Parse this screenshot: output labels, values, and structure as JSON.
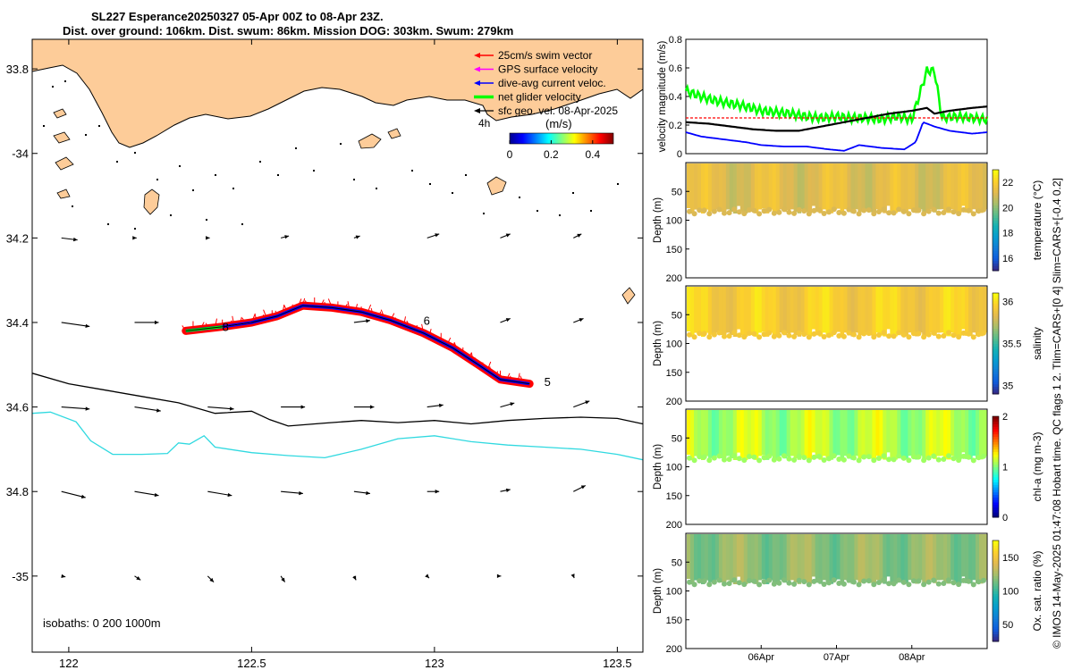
{
  "title_line1": "SL227 Esperance20250327 05-Apr 00Z to 08-Apr 23Z.",
  "title_line2": "Dist. over ground: 106km. Dist. swum: 86km. Mission DOG: 303km. Swum: 279km",
  "side_caption": "© IMOS 14-May-2025 01:47:08 Hobart time. QC flags 1  2. Tlim=CARS+[0 4] Slim=CARS+[-0.4 0.2]",
  "colors": {
    "land": "#fdcc99",
    "swim_vector": "#ff0000",
    "gps_velocity": "#ff00ff",
    "dive_avg": "#0000ff",
    "net_velocity": "#00ff00",
    "sfc_geo": "#000000",
    "isobath_200": "#000000",
    "isobath_1000": "#30d9e0"
  },
  "chart_data": [
    {
      "type": "map",
      "name": "glider track map",
      "xlim": [
        121.9,
        123.57
      ],
      "ylim": [
        -35.18,
        -33.73
      ],
      "xticks": [
        122,
        122.5,
        123,
        123.5
      ],
      "xtick_labels": [
        "122",
        "122.5",
        "123",
        "123.5"
      ],
      "yticks": [
        -33.8,
        -34,
        -34.2,
        -34.4,
        -34.6,
        -34.8,
        -35
      ],
      "ytick_labels": [
        "33.8",
        "-34",
        "34.2",
        "34.4",
        "34.6",
        "34.8",
        "-35"
      ],
      "legend": [
        {
          "key": "swim",
          "label": "25cm/s swim vector"
        },
        {
          "key": "gps",
          "label": "GPS surface velocity"
        },
        {
          "key": "dive",
          "label": "dive-avg current veloc."
        },
        {
          "key": "net",
          "label": "net glider velocity"
        },
        {
          "key": "geo",
          "label": "sfc geo. vel. 08-Apr-2025"
        }
      ],
      "legend_position": "top-right",
      "colorbar": {
        "label": "(m/s)",
        "ticks": [
          0,
          0.2,
          0.4
        ],
        "tick_labels": [
          "0",
          "0.2",
          "0.4"
        ],
        "range": [
          0,
          0.5
        ],
        "extra_label": "4h"
      },
      "isobaths_label": "isobaths: 0   200  1000m",
      "track": [
        [
          122.32,
          -34.42
        ],
        [
          122.42,
          -34.41
        ],
        [
          122.5,
          -34.4
        ],
        [
          122.57,
          -34.385
        ],
        [
          122.64,
          -34.36
        ],
        [
          122.72,
          -34.365
        ],
        [
          122.8,
          -34.375
        ],
        [
          122.88,
          -34.395
        ],
        [
          122.97,
          -34.425
        ],
        [
          123.05,
          -34.46
        ],
        [
          123.12,
          -34.5
        ],
        [
          123.18,
          -34.535
        ],
        [
          123.26,
          -34.545
        ]
      ],
      "track_labels": [
        {
          "text": "6",
          "lon": 122.97,
          "lat": -34.405
        },
        {
          "text": "5",
          "lon": 123.3,
          "lat": -34.55
        },
        {
          "text": "8",
          "lon": 122.42,
          "lat": -34.42
        }
      ],
      "isobath_200": [
        [
          121.9,
          -34.52
        ],
        [
          122.0,
          -34.545
        ],
        [
          122.1,
          -34.56
        ],
        [
          122.2,
          -34.575
        ],
        [
          122.3,
          -34.59
        ],
        [
          122.4,
          -34.615
        ],
        [
          122.5,
          -34.61
        ],
        [
          122.55,
          -34.63
        ],
        [
          122.6,
          -34.645
        ],
        [
          122.7,
          -34.638
        ],
        [
          122.8,
          -34.632
        ],
        [
          122.9,
          -34.637
        ],
        [
          123.0,
          -34.632
        ],
        [
          123.1,
          -34.64
        ],
        [
          123.2,
          -34.632
        ],
        [
          123.3,
          -34.627
        ],
        [
          123.4,
          -34.624
        ],
        [
          123.5,
          -34.627
        ],
        [
          123.57,
          -34.64
        ]
      ],
      "isobath_1000": [
        [
          121.9,
          -34.615
        ],
        [
          121.95,
          -34.612
        ],
        [
          122.02,
          -34.635
        ],
        [
          122.06,
          -34.68
        ],
        [
          122.12,
          -34.712
        ],
        [
          122.2,
          -34.712
        ],
        [
          122.27,
          -34.71
        ],
        [
          122.3,
          -34.685
        ],
        [
          122.33,
          -34.688
        ],
        [
          122.37,
          -34.668
        ],
        [
          122.4,
          -34.695
        ],
        [
          122.5,
          -34.708
        ],
        [
          122.6,
          -34.715
        ],
        [
          122.7,
          -34.72
        ],
        [
          122.8,
          -34.7
        ],
        [
          122.9,
          -34.675
        ],
        [
          123.0,
          -34.668
        ],
        [
          123.1,
          -34.682
        ],
        [
          123.2,
          -34.69
        ],
        [
          123.3,
          -34.695
        ],
        [
          123.4,
          -34.7
        ],
        [
          123.5,
          -34.712
        ],
        [
          123.57,
          -34.725
        ]
      ],
      "geo_vectors": [
        {
          "lon": 121.98,
          "lat": -34.2,
          "u": 0.04,
          "v": -0.005
        },
        {
          "lon": 122.18,
          "lat": -34.2,
          "u": 0.005,
          "v": 0
        },
        {
          "lon": 122.38,
          "lat": -34.2,
          "u": 0.005,
          "v": 0
        },
        {
          "lon": 122.58,
          "lat": -34.2,
          "u": 0.02,
          "v": 0.005
        },
        {
          "lon": 122.78,
          "lat": -34.2,
          "u": 0.015,
          "v": 0.005
        },
        {
          "lon": 122.98,
          "lat": -34.2,
          "u": 0.03,
          "v": 0.01
        },
        {
          "lon": 123.18,
          "lat": -34.2,
          "u": 0.025,
          "v": 0.01
        },
        {
          "lon": 123.38,
          "lat": -34.2,
          "u": 0.02,
          "v": 0.01
        },
        {
          "lon": 121.98,
          "lat": -34.4,
          "u": 0.07,
          "v": -0.01
        },
        {
          "lon": 122.18,
          "lat": -34.4,
          "u": 0.06,
          "v": 0
        },
        {
          "lon": 122.78,
          "lat": -34.4,
          "u": 0.04,
          "v": 0.005
        },
        {
          "lon": 123.18,
          "lat": -34.4,
          "u": 0.025,
          "v": 0.01
        },
        {
          "lon": 123.38,
          "lat": -34.4,
          "u": 0.025,
          "v": 0.01
        },
        {
          "lon": 121.98,
          "lat": -34.6,
          "u": 0.07,
          "v": -0.005
        },
        {
          "lon": 122.18,
          "lat": -34.6,
          "u": 0.065,
          "v": -0.01
        },
        {
          "lon": 122.38,
          "lat": -34.6,
          "u": 0.065,
          "v": -0.005
        },
        {
          "lon": 122.58,
          "lat": -34.6,
          "u": 0.06,
          "v": 0
        },
        {
          "lon": 122.78,
          "lat": -34.6,
          "u": 0.05,
          "v": 0
        },
        {
          "lon": 122.98,
          "lat": -34.6,
          "u": 0.04,
          "v": 0.005
        },
        {
          "lon": 123.18,
          "lat": -34.6,
          "u": 0.035,
          "v": 0.01
        },
        {
          "lon": 123.38,
          "lat": -34.6,
          "u": 0.04,
          "v": 0.015
        },
        {
          "lon": 121.98,
          "lat": -34.8,
          "u": 0.06,
          "v": -0.015
        },
        {
          "lon": 122.18,
          "lat": -34.8,
          "u": 0.06,
          "v": -0.01
        },
        {
          "lon": 122.38,
          "lat": -34.8,
          "u": 0.06,
          "v": -0.01
        },
        {
          "lon": 122.58,
          "lat": -34.8,
          "u": 0.055,
          "v": -0.005
        },
        {
          "lon": 122.78,
          "lat": -34.8,
          "u": 0.04,
          "v": -0.005
        },
        {
          "lon": 122.98,
          "lat": -34.8,
          "u": 0.03,
          "v": 0
        },
        {
          "lon": 123.18,
          "lat": -34.8,
          "u": 0.025,
          "v": 0.005
        },
        {
          "lon": 123.38,
          "lat": -34.8,
          "u": 0.03,
          "v": 0.015
        },
        {
          "lon": 121.98,
          "lat": -35.0,
          "u": 0.01,
          "v": -0.002
        },
        {
          "lon": 122.18,
          "lat": -35.0,
          "u": 0.015,
          "v": -0.01
        },
        {
          "lon": 122.38,
          "lat": -35.0,
          "u": 0.015,
          "v": -0.015
        },
        {
          "lon": 122.58,
          "lat": -35.0,
          "u": 0.01,
          "v": -0.015
        },
        {
          "lon": 122.78,
          "lat": -35.0,
          "u": 0.005,
          "v": -0.01
        },
        {
          "lon": 122.98,
          "lat": -35.0,
          "u": 0.005,
          "v": -0.005
        },
        {
          "lon": 123.18,
          "lat": -35.0,
          "u": 0.002,
          "v": 0
        },
        {
          "lon": 123.38,
          "lat": -35.0,
          "u": 0.002,
          "v": -0.005
        }
      ]
    },
    {
      "type": "line",
      "name": "velocity magnitude timeseries",
      "ylabel": "velocity magnitude (m/s)",
      "ylim": [
        0,
        0.8
      ],
      "yticks": [
        0,
        0.2,
        0.4,
        0.6,
        0.8
      ],
      "ytick_labels": [
        "0",
        "0.2",
        "0.4",
        "0.6",
        "0.8"
      ],
      "xlim_days": [
        0,
        4
      ],
      "series": [
        {
          "name": "net glider velocity",
          "x": [
            0,
            0.2,
            0.4,
            0.6,
            0.8,
            1.0,
            1.2,
            1.4,
            1.6,
            1.8,
            2.0,
            2.2,
            2.4,
            2.6,
            2.8,
            3.0,
            3.2,
            3.3,
            3.4,
            3.6,
            3.8,
            4.0
          ],
          "y": [
            0.44,
            0.4,
            0.37,
            0.35,
            0.33,
            0.3,
            0.29,
            0.28,
            0.26,
            0.25,
            0.26,
            0.25,
            0.25,
            0.24,
            0.26,
            0.24,
            0.58,
            0.58,
            0.25,
            0.26,
            0.25,
            0.24
          ]
        },
        {
          "name": "swim vector",
          "x": [
            0,
            1,
            2,
            3,
            4
          ],
          "y": [
            0.25,
            0.25,
            0.25,
            0.25,
            0.25
          ]
        },
        {
          "name": "sfc geo. vel.",
          "x": [
            0,
            0.3,
            0.6,
            0.9,
            1.2,
            1.5,
            1.8,
            2.1,
            2.4,
            2.7,
            3.0,
            3.2,
            3.3,
            3.5,
            3.8,
            4.0
          ],
          "y": [
            0.22,
            0.21,
            0.19,
            0.17,
            0.16,
            0.16,
            0.19,
            0.22,
            0.25,
            0.28,
            0.3,
            0.32,
            0.28,
            0.3,
            0.32,
            0.33
          ]
        },
        {
          "name": "dive-avg current",
          "x": [
            0,
            0.2,
            0.5,
            0.8,
            1.0,
            1.3,
            1.6,
            1.9,
            2.1,
            2.3,
            2.6,
            2.9,
            3.05,
            3.15,
            3.3,
            3.5,
            3.8,
            4.0
          ],
          "y": [
            0.15,
            0.12,
            0.1,
            0.08,
            0.06,
            0.05,
            0.05,
            0.03,
            0.02,
            0.06,
            0.04,
            0.03,
            0.08,
            0.22,
            0.19,
            0.16,
            0.14,
            0.15
          ]
        }
      ]
    },
    {
      "type": "scatter",
      "name": "temperature section",
      "ylabel": "Depth (m)",
      "colorbar_label": "temperature (°C)",
      "ylim": [
        0,
        200
      ],
      "yticks": [
        50,
        100,
        150,
        200
      ],
      "ytick_labels": [
        "50",
        "100",
        "150",
        "200"
      ],
      "clim": [
        15,
        23
      ],
      "cticks": [
        16,
        18,
        20,
        22
      ],
      "ctick_labels": [
        "16",
        "18",
        "20",
        "22"
      ],
      "max_depth": 85,
      "typical_value": 21.3
    },
    {
      "type": "scatter",
      "name": "salinity section",
      "ylabel": "Depth (m)",
      "colorbar_label": "salinity",
      "ylim": [
        0,
        200
      ],
      "yticks": [
        50,
        100,
        150,
        200
      ],
      "ytick_labels": [
        "50",
        "100",
        "150",
        "200"
      ],
      "clim": [
        34.9,
        36.1
      ],
      "cticks": [
        35,
        35.5,
        36
      ],
      "ctick_labels": [
        "35",
        "35.5",
        "36"
      ],
      "max_depth": 85,
      "typical_value": 35.95
    },
    {
      "type": "scatter",
      "name": "chlorophyll section",
      "ylabel": "Depth (m)",
      "colorbar_label": "chl-a (mg m-3)",
      "ylim": [
        0,
        200
      ],
      "yticks": [
        50,
        100,
        150,
        200
      ],
      "ytick_labels": [
        "50",
        "100",
        "150",
        "200"
      ],
      "clim": [
        0,
        2
      ],
      "cticks": [
        0,
        1,
        2
      ],
      "ctick_labels": [
        "0",
        "1",
        "2"
      ],
      "max_depth": 85,
      "typical_value": 1.1
    },
    {
      "type": "scatter",
      "name": "oxygen saturation section",
      "ylabel": "Depth (m)",
      "colorbar_label": "Ox. sat. ratio (%)",
      "ylim": [
        0,
        200
      ],
      "yticks": [
        50,
        100,
        150,
        200
      ],
      "ytick_labels": [
        "50",
        "100",
        "150",
        "200"
      ],
      "clim": [
        25,
        175
      ],
      "cticks": [
        50,
        100,
        150
      ],
      "ctick_labels": [
        "50",
        "100",
        "150"
      ],
      "max_depth": 85,
      "typical_value": 120,
      "xtick_days": [
        1,
        2,
        3
      ],
      "xtick_labels": [
        "06Apr",
        "07Apr",
        "08Apr"
      ]
    }
  ]
}
